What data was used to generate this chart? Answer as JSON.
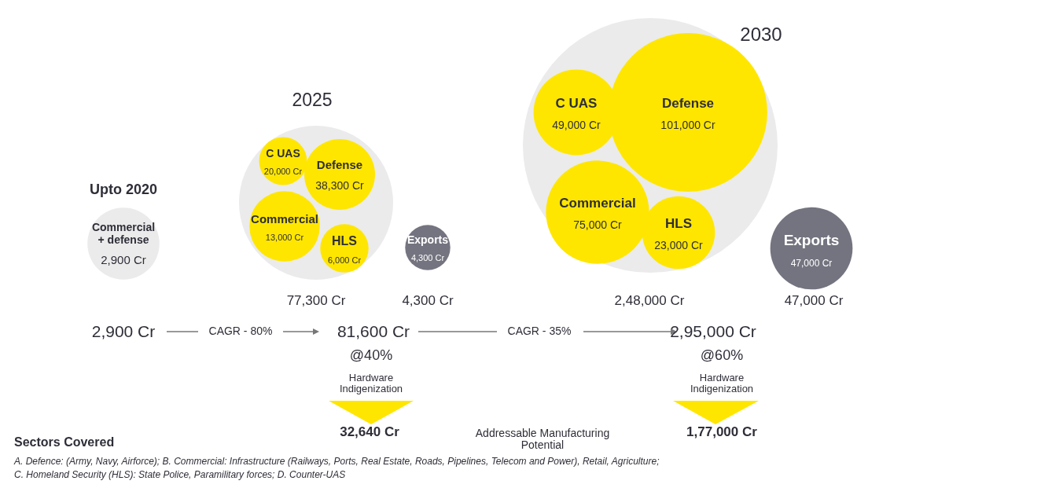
{
  "chart_data": {
    "type": "other",
    "categories": [
      "Commercial + defense",
      "C UAS",
      "Defense",
      "Commercial",
      "HLS",
      "Exports",
      "C UAS",
      "Defense",
      "Commercial",
      "HLS",
      "Exports"
    ],
    "values": [
      2900,
      20000,
      38300,
      13000,
      6000,
      4300,
      49000,
      101000,
      75000,
      23000,
      47000
    ],
    "value_labels": [
      "2,900 Cr",
      "20,000 Cr",
      "38,300 Cr",
      "13,000 Cr",
      "6,000 Cr",
      "4,300 Cr",
      "49,000 Cr",
      "101,000 Cr",
      "75,000 Cr",
      "23,000 Cr",
      "47,000 Cr"
    ],
    "colors": [
      "#ebebeb",
      "#ffe600",
      "#ffe600",
      "#ffe600",
      "#ffe600",
      "#747480",
      "#ffe600",
      "#ffe600",
      "#ffe600",
      "#ffe600",
      "#747480"
    ],
    "annotations": [
      "Upto 2020",
      "2025",
      "2030",
      "77,300 Cr",
      "4,300 Cr",
      "2,48,000 Cr",
      "47,000 Cr",
      "2,900 Cr",
      "CAGR - 80%",
      "81,600 Cr",
      "CAGR - 35%",
      "2,95,000 Cr",
      "@40%",
      "Hardware Indigenization",
      "@60%",
      "Hardware Indigenization",
      "32,640 Cr",
      "Addressable Manufacturing Potential",
      "1,77,000 Cr",
      "Sectors Covered",
      "A. Defence: (Army, Navy, Airforce); B. Commercial: Infrastructure (Railways, Ports, Real Estate, Roads, Pipelines, Telecom and Power), Retail, Agriculture;",
      "C. Homeland Security (HLS): State Police, Paramilitary forces; D. Counter-UAS"
    ]
  }
}
